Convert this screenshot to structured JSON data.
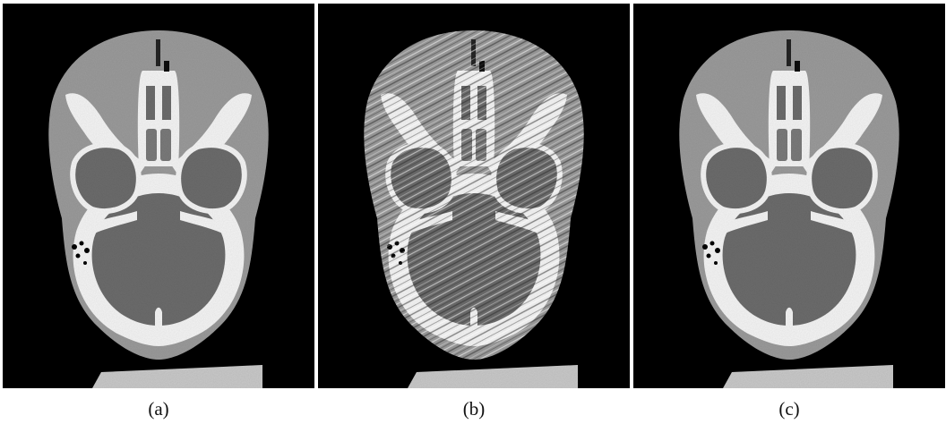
{
  "figure": {
    "panels": [
      {
        "id": "a",
        "caption": "(a)",
        "artifacts": false
      },
      {
        "id": "b",
        "caption": "(b)",
        "artifacts": true
      },
      {
        "id": "c",
        "caption": "(c)",
        "artifacts": false
      }
    ]
  },
  "colors": {
    "background": "#000000",
    "soft_tissue": "#9b9b9b",
    "brain": "#6c6c6c",
    "bone": "#f5f5f5",
    "page": "#ffffff"
  }
}
